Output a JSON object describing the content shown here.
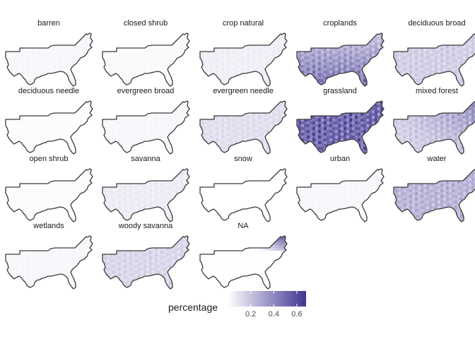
{
  "chart_data": {
    "type": "heatmap",
    "description_kind": "faceted choropleth maps",
    "facets": [
      {
        "label": "barren",
        "mean_value": 0.03,
        "pattern": "uniform"
      },
      {
        "label": "closed  shrub",
        "mean_value": 0.02,
        "pattern": "uniform"
      },
      {
        "label": "crop  natural",
        "mean_value": 0.06,
        "pattern": "uniform"
      },
      {
        "label": "croplands",
        "mean_value": 0.38,
        "pattern": "south-heavy"
      },
      {
        "label": "deciduous  broad",
        "mean_value": 0.18,
        "pattern": "uniform"
      },
      {
        "label": "deciduous  needle",
        "mean_value": 0.01,
        "pattern": "uniform"
      },
      {
        "label": "evergreen  broad",
        "mean_value": 0.03,
        "pattern": "uniform"
      },
      {
        "label": "evergreen  needle",
        "mean_value": 0.12,
        "pattern": "uniform"
      },
      {
        "label": "grassland",
        "mean_value": 0.58,
        "pattern": "uniform"
      },
      {
        "label": "mixed  forest",
        "mean_value": 0.32,
        "pattern": "north-heavy"
      },
      {
        "label": "open  shrub",
        "mean_value": 0.01,
        "pattern": "uniform"
      },
      {
        "label": "savanna",
        "mean_value": 0.07,
        "pattern": "uniform"
      },
      {
        "label": "snow",
        "mean_value": 0.0,
        "pattern": "uniform"
      },
      {
        "label": "urban",
        "mean_value": 0.03,
        "pattern": "uniform"
      },
      {
        "label": "water",
        "mean_value": 0.28,
        "pattern": "uniform"
      },
      {
        "label": "wetlands",
        "mean_value": 0.03,
        "pattern": "uniform"
      },
      {
        "label": "woody  savanna",
        "mean_value": 0.15,
        "pattern": "uniform"
      },
      {
        "label": "NA",
        "mean_value": 0.05,
        "pattern": "northeast-corner"
      }
    ],
    "legend": {
      "title": "percentage",
      "ticks": [
        0.2,
        0.4,
        0.6
      ],
      "range": [
        0.0,
        0.68
      ],
      "color_low": "#ffffff",
      "color_high": "#3f3592",
      "position": "bottom"
    },
    "colors": {
      "outline": "#3a3a3a"
    }
  }
}
